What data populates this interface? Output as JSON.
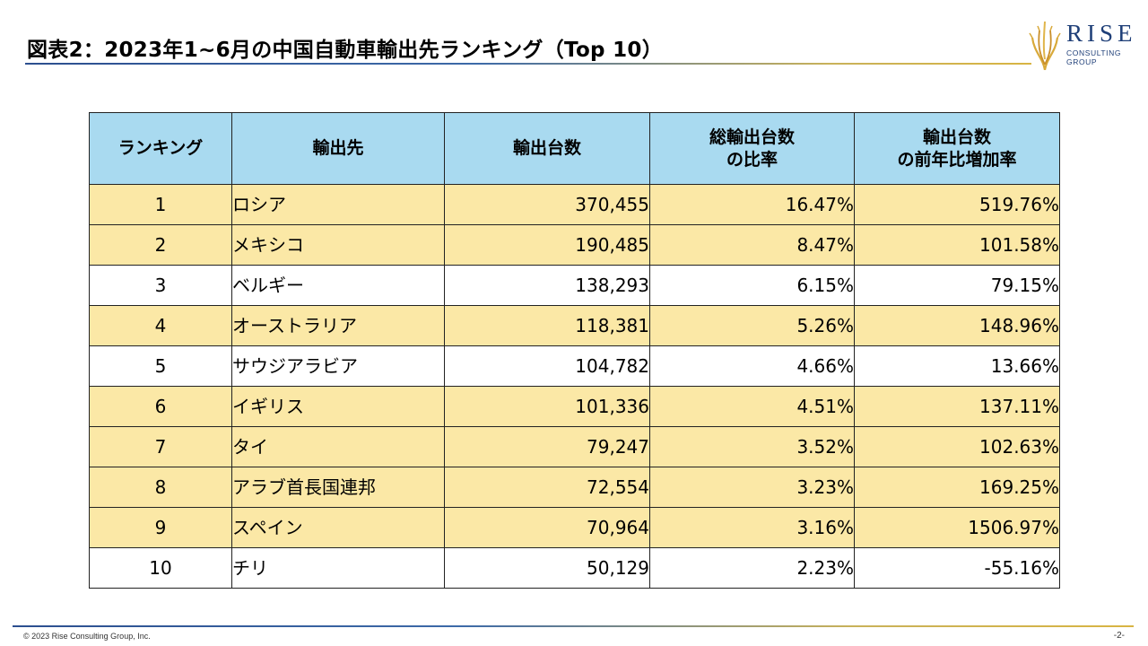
{
  "header": {
    "title": "図表2：2023年1~6月の中国自動車輸出先ランキング（Top 10）"
  },
  "logo": {
    "name": "RISE",
    "sub_line1": "CONSULTING",
    "sub_line2": "GROUP",
    "accent_color": "#d8a93a",
    "text_color": "#1f3f78"
  },
  "table": {
    "headers": [
      {
        "line1": "ランキング",
        "line2": ""
      },
      {
        "line1": "輸出先",
        "line2": ""
      },
      {
        "line1": "輸出台数",
        "line2": ""
      },
      {
        "line1": "総輸出台数",
        "line2": "の比率"
      },
      {
        "line1": "輸出台数",
        "line2": "の前年比増加率"
      }
    ],
    "rows": [
      {
        "rank": "1",
        "destination": "ロシア",
        "units": "370,455",
        "share": "16.47%",
        "growth": "519.76%"
      },
      {
        "rank": "2",
        "destination": "メキシコ",
        "units": "190,485",
        "share": "8.47%",
        "growth": "101.58%"
      },
      {
        "rank": "3",
        "destination": "ベルギー",
        "units": "138,293",
        "share": "6.15%",
        "growth": "79.15%"
      },
      {
        "rank": "4",
        "destination": "オーストラリア",
        "units": "118,381",
        "share": "5.26%",
        "growth": "148.96%"
      },
      {
        "rank": "5",
        "destination": "サウジアラビア",
        "units": "104,782",
        "share": "4.66%",
        "growth": "13.66%"
      },
      {
        "rank": "6",
        "destination": "イギリス",
        "units": "101,336",
        "share": "4.51%",
        "growth": "137.11%"
      },
      {
        "rank": "7",
        "destination": "タイ",
        "units": "79,247",
        "share": "3.52%",
        "growth": "102.63%"
      },
      {
        "rank": "8",
        "destination": "アラブ首長国連邦",
        "units": "72,554",
        "share": "3.23%",
        "growth": "169.25%"
      },
      {
        "rank": "9",
        "destination": "スペイン",
        "units": "70,964",
        "share": "3.16%",
        "growth": "1506.97%"
      },
      {
        "rank": "10",
        "destination": "チリ",
        "units": "50,129",
        "share": "2.23%",
        "growth": "-55.16%"
      }
    ],
    "colors": {
      "header_bg": "#a9daf0",
      "alt_row_bg": "#fbe8a6",
      "plain_row_bg": "#ffffff"
    }
  },
  "footer": {
    "copyright": "© 2023 Rise Consulting Group, Inc.",
    "page": "-2-"
  }
}
